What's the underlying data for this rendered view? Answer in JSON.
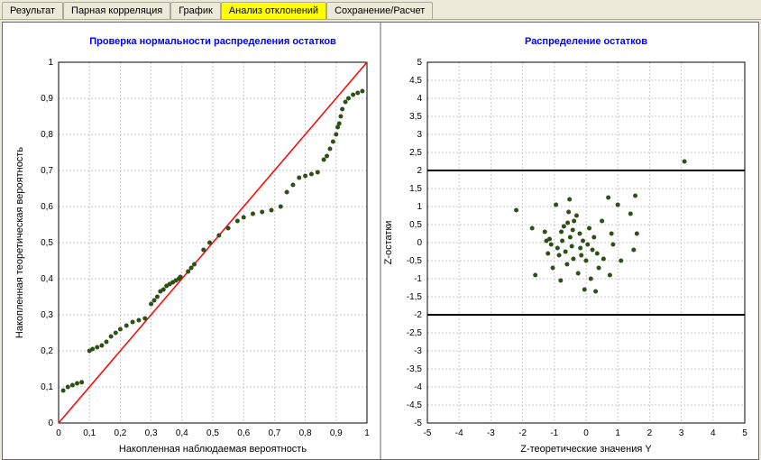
{
  "tabs": [
    {
      "label": "Результат",
      "active": false
    },
    {
      "label": "Парная корреляция",
      "active": false
    },
    {
      "label": "График",
      "active": false
    },
    {
      "label": "Анализ отклонений",
      "active": true
    },
    {
      "label": "Сохранение/Расчет",
      "active": false
    }
  ],
  "chart1": {
    "title": "Проверка нормальности распределения остатков",
    "xlabel": "Накопленная наблюдаемая вероятность",
    "ylabel": "Накопленная теоретическая вероятность",
    "xlim": [
      0,
      1
    ],
    "ylim": [
      0,
      1
    ],
    "xtick_step": 0.1,
    "ytick_step": 0.1,
    "xtick_labels": [
      "0",
      "0,1",
      "0,2",
      "0,3",
      "0,4",
      "0,5",
      "0,6",
      "0,7",
      "0,8",
      "0,9",
      "1"
    ],
    "ytick_labels": [
      "0",
      "0,1",
      "0,2",
      "0,3",
      "0,4",
      "0,5",
      "0,6",
      "0,7",
      "0,8",
      "0,9",
      "1"
    ],
    "grid_color": "#c8c8c8",
    "grid_dash": "2,2",
    "line": {
      "x1": 0,
      "y1": 0,
      "x2": 1,
      "y2": 1,
      "color": "#ff0000",
      "width": 1.5
    },
    "marker_color": "#2d5016",
    "marker_radius": 2.5,
    "points": [
      [
        0.015,
        0.09
      ],
      [
        0.03,
        0.1
      ],
      [
        0.045,
        0.105
      ],
      [
        0.06,
        0.11
      ],
      [
        0.075,
        0.113
      ],
      [
        0.1,
        0.2
      ],
      [
        0.11,
        0.205
      ],
      [
        0.125,
        0.21
      ],
      [
        0.14,
        0.215
      ],
      [
        0.155,
        0.225
      ],
      [
        0.17,
        0.24
      ],
      [
        0.185,
        0.25
      ],
      [
        0.2,
        0.26
      ],
      [
        0.22,
        0.27
      ],
      [
        0.24,
        0.28
      ],
      [
        0.26,
        0.285
      ],
      [
        0.28,
        0.29
      ],
      [
        0.3,
        0.33
      ],
      [
        0.31,
        0.34
      ],
      [
        0.32,
        0.35
      ],
      [
        0.33,
        0.365
      ],
      [
        0.34,
        0.37
      ],
      [
        0.35,
        0.38
      ],
      [
        0.36,
        0.385
      ],
      [
        0.37,
        0.39
      ],
      [
        0.38,
        0.395
      ],
      [
        0.39,
        0.4
      ],
      [
        0.395,
        0.405
      ],
      [
        0.42,
        0.42
      ],
      [
        0.43,
        0.43
      ],
      [
        0.44,
        0.44
      ],
      [
        0.47,
        0.48
      ],
      [
        0.49,
        0.5
      ],
      [
        0.52,
        0.52
      ],
      [
        0.55,
        0.54
      ],
      [
        0.58,
        0.56
      ],
      [
        0.6,
        0.57
      ],
      [
        0.63,
        0.58
      ],
      [
        0.66,
        0.585
      ],
      [
        0.69,
        0.59
      ],
      [
        0.72,
        0.6
      ],
      [
        0.74,
        0.64
      ],
      [
        0.76,
        0.66
      ],
      [
        0.78,
        0.68
      ],
      [
        0.8,
        0.685
      ],
      [
        0.82,
        0.69
      ],
      [
        0.84,
        0.695
      ],
      [
        0.86,
        0.73
      ],
      [
        0.87,
        0.74
      ],
      [
        0.88,
        0.76
      ],
      [
        0.89,
        0.78
      ],
      [
        0.9,
        0.8
      ],
      [
        0.905,
        0.82
      ],
      [
        0.91,
        0.83
      ],
      [
        0.915,
        0.85
      ],
      [
        0.92,
        0.87
      ],
      [
        0.93,
        0.89
      ],
      [
        0.94,
        0.9
      ],
      [
        0.955,
        0.91
      ],
      [
        0.97,
        0.915
      ],
      [
        0.985,
        0.92
      ]
    ]
  },
  "chart2": {
    "title": "Распределение остатков",
    "xlabel": "Z-теоретические значения Y",
    "ylabel": "Z-остатки",
    "xlim": [
      -5,
      5
    ],
    "ylim": [
      -5,
      5
    ],
    "xtick_step": 1,
    "ytick_step": 0.5,
    "xtick_labels": [
      "-5",
      "-4",
      "-3",
      "-2",
      "-1",
      "0",
      "1",
      "2",
      "3",
      "4",
      "5"
    ],
    "ytick_labels": [
      "-5",
      "-4,5",
      "-4",
      "-3,5",
      "-3",
      "-2,5",
      "-2",
      "-1,5",
      "-1",
      "-0,5",
      "0",
      "0,5",
      "1",
      "1,5",
      "2",
      "2,5",
      "3",
      "3,5",
      "4",
      "4,5",
      "5"
    ],
    "grid_color": "#c8c8c8",
    "grid_dash": "2,2",
    "bands": {
      "color": "#000000",
      "width": 2,
      "y_values": [
        -2,
        2
      ]
    },
    "marker_color": "#2d5016",
    "marker_radius": 2.5,
    "points": [
      [
        -2.2,
        0.9
      ],
      [
        -1.7,
        0.4
      ],
      [
        -1.6,
        -0.9
      ],
      [
        -1.3,
        0.3
      ],
      [
        -1.25,
        0.05
      ],
      [
        -1.2,
        -0.3
      ],
      [
        -1.15,
        0.1
      ],
      [
        -1.1,
        -0.05
      ],
      [
        -1.05,
        -0.7
      ],
      [
        -0.95,
        1.05
      ],
      [
        -0.9,
        -0.15
      ],
      [
        -0.85,
        -0.35
      ],
      [
        -0.8,
        -1.05
      ],
      [
        -0.78,
        0.3
      ],
      [
        -0.75,
        0.05
      ],
      [
        -0.7,
        0.45
      ],
      [
        -0.65,
        -0.25
      ],
      [
        -0.6,
        -0.6
      ],
      [
        -0.58,
        0.55
      ],
      [
        -0.55,
        0.85
      ],
      [
        -0.52,
        1.2
      ],
      [
        -0.5,
        0.15
      ],
      [
        -0.45,
        -0.1
      ],
      [
        -0.42,
        0.35
      ],
      [
        -0.4,
        -0.45
      ],
      [
        -0.38,
        0.6
      ],
      [
        -0.3,
        0.75
      ],
      [
        -0.25,
        -0.85
      ],
      [
        -0.2,
        0.25
      ],
      [
        -0.18,
        -0.15
      ],
      [
        -0.15,
        -0.35
      ],
      [
        -0.1,
        0.05
      ],
      [
        -0.05,
        -1.3
      ],
      [
        0.0,
        -0.5
      ],
      [
        0.05,
        -0.05
      ],
      [
        0.1,
        0.4
      ],
      [
        0.15,
        -1.0
      ],
      [
        0.2,
        -0.2
      ],
      [
        0.25,
        0.15
      ],
      [
        0.3,
        -1.35
      ],
      [
        0.35,
        -0.3
      ],
      [
        0.4,
        -0.7
      ],
      [
        0.5,
        0.6
      ],
      [
        0.55,
        -0.45
      ],
      [
        0.7,
        1.25
      ],
      [
        0.75,
        -0.9
      ],
      [
        0.8,
        0.25
      ],
      [
        0.85,
        -0.05
      ],
      [
        1.0,
        1.05
      ],
      [
        1.1,
        -0.5
      ],
      [
        1.4,
        0.8
      ],
      [
        1.5,
        -0.2
      ],
      [
        1.55,
        1.3
      ],
      [
        1.6,
        0.25
      ],
      [
        3.1,
        2.25
      ]
    ]
  }
}
